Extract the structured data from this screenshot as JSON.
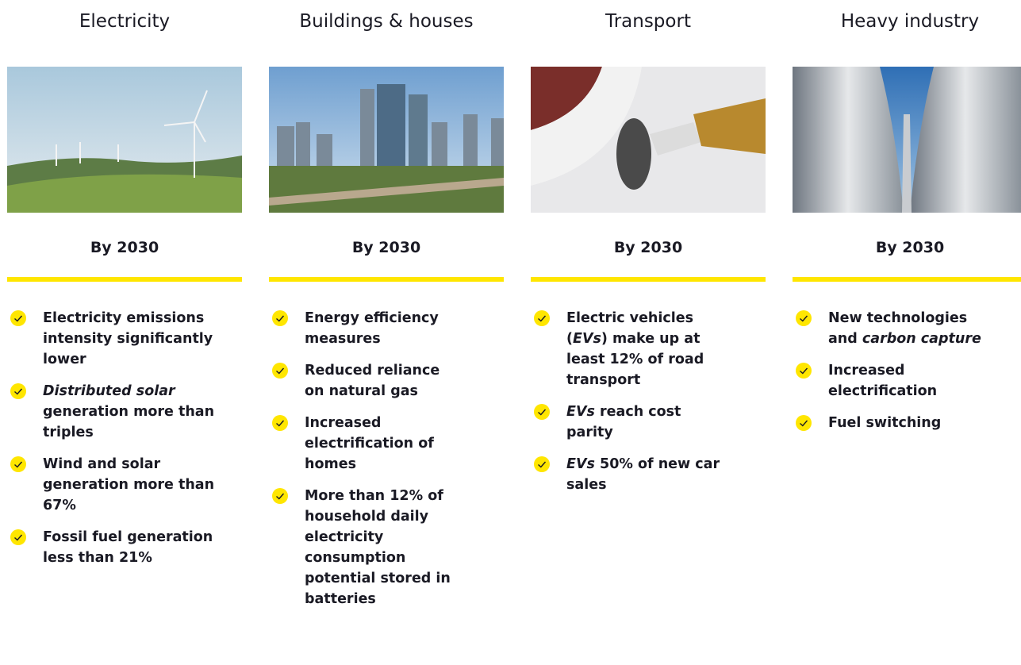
{
  "columns": [
    {
      "title": "Electricity",
      "subtitle": "By 2030",
      "items": [
        [
          "Electricity emissions intensity significantly lower"
        ],
        [
          {
            "text": "Distributed solar",
            "italic": true
          },
          " generation more than triples"
        ],
        [
          "Wind and solar generation more than 67%"
        ],
        [
          "Fossil fuel generation less than 21%"
        ]
      ]
    },
    {
      "title": "Buildings & houses",
      "subtitle": "By 2030",
      "items": [
        [
          "Energy efficiency measures"
        ],
        [
          "Reduced reliance on natural gas"
        ],
        [
          "Increased electrification of homes"
        ],
        [
          "More than 12% of household daily electricity consumption potential stored in batteries"
        ]
      ]
    },
    {
      "title": "Transport",
      "subtitle": "By 2030",
      "items": [
        [
          "Electric vehicles (",
          {
            "text": "EVs",
            "italic": true
          },
          ") make up at least 12% of road transport"
        ],
        [
          {
            "text": "EVs",
            "italic": true
          },
          " reach cost parity"
        ],
        [
          {
            "text": "EVs",
            "italic": true
          },
          " 50% of new car sales"
        ]
      ]
    },
    {
      "title": "Heavy industry",
      "subtitle": "By 2030",
      "items": [
        [
          "New technologies and ",
          {
            "text": "carbon capture",
            "italic": true
          }
        ],
        [
          "Increased electrification"
        ],
        [
          "Fuel switching"
        ]
      ]
    }
  ]
}
